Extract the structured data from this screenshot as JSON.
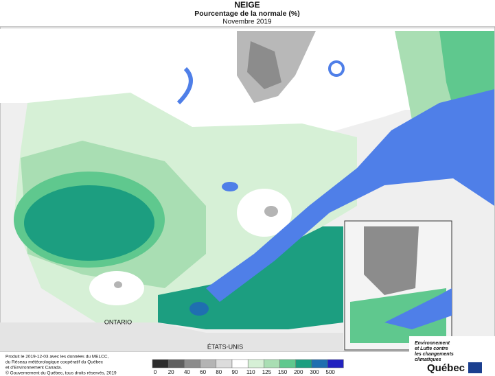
{
  "header": {
    "title": "NEIGE",
    "subtitle": "Pourcentage de la normale (%)",
    "period": "Novembre 2019"
  },
  "map": {
    "labels": [
      "ONTARIO",
      "ÉTATS-UNIS"
    ]
  },
  "legend": {
    "ticks": [
      0,
      20,
      40,
      60,
      80,
      90,
      110,
      125,
      150,
      200,
      300,
      500
    ],
    "colors": [
      "#2d2d2d",
      "#5f5f5f",
      "#8c8c8c",
      "#b4b4b4",
      "#dcdcdc",
      "#ffffff",
      "#d6f0d6",
      "#a9deb3",
      "#5fc88e",
      "#1c9e80",
      "#1f6fb0",
      "#2222c0"
    ]
  },
  "footer": {
    "lines": [
      "Produit le 2019-12-03 avec les données du MELCC,",
      "du Réseau météorologique coopératif du Québec",
      "et d'Environnement Canada."
    ],
    "copyright": "© Gouvernement du Québec, tous droits réservés, 2019"
  },
  "logo": {
    "lines": [
      "Environnement",
      "et Lutte contre",
      "les changements",
      "climatiques"
    ],
    "name": "Québec"
  }
}
